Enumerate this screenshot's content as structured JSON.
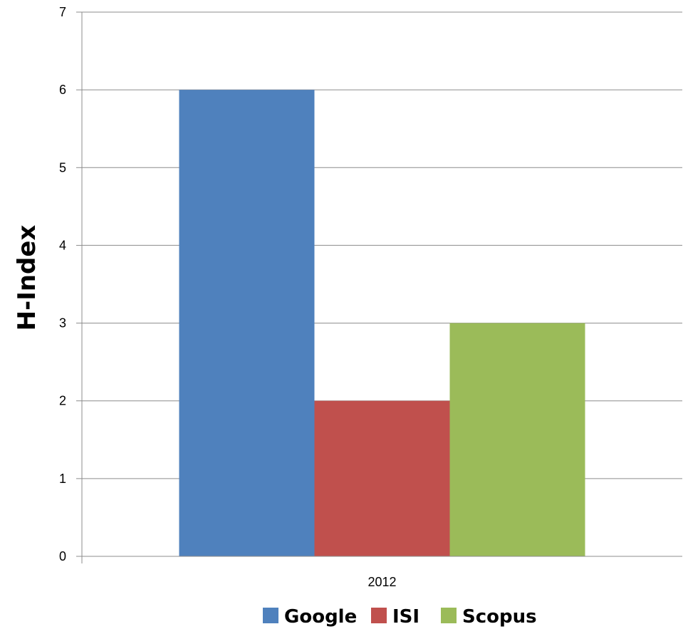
{
  "chart_data": {
    "type": "bar",
    "categories": [
      "2012"
    ],
    "series": [
      {
        "name": "Google",
        "values": [
          6
        ],
        "color": "#4F81BD"
      },
      {
        "name": "ISI",
        "values": [
          2
        ],
        "color": "#C0504D"
      },
      {
        "name": "Scopus",
        "values": [
          3
        ],
        "color": "#9BBB59"
      }
    ],
    "xlabel": "",
    "ylabel": "H-Index",
    "ylim": [
      0,
      7
    ],
    "yticks": [
      "0",
      "1",
      "2",
      "3",
      "4",
      "5",
      "6",
      "7"
    ],
    "grid": true,
    "legend_position": "bottom"
  }
}
